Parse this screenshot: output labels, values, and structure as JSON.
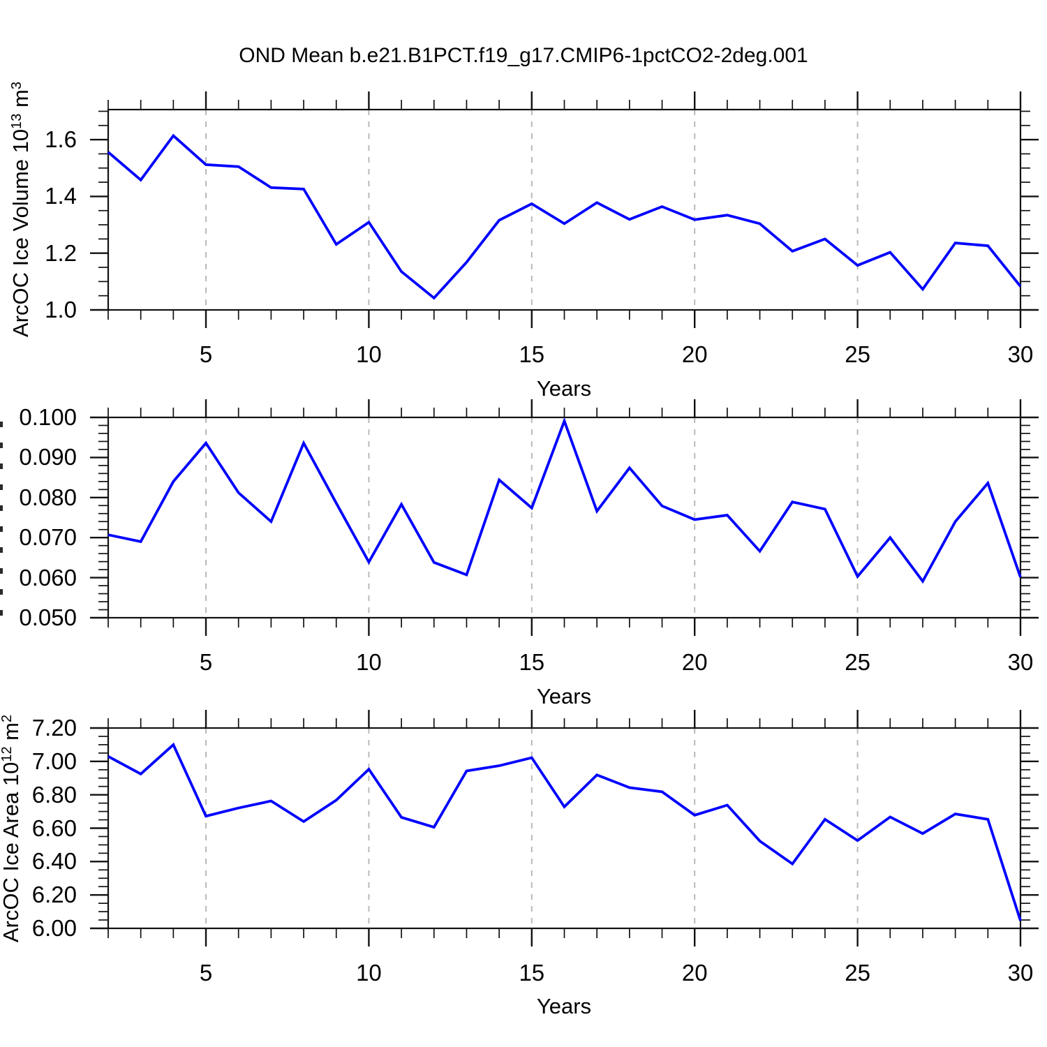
{
  "title": "OND Mean b.e21.B1PCT.f19_g17.CMIP6-1pctCO2-2deg.001",
  "colors": {
    "line": "#0000ff",
    "frame": "#111111",
    "tick": "#111111",
    "grid": "#b9b9b9",
    "text": "#000000"
  },
  "chart_data": {
    "type": "line",
    "x_years": [
      2,
      3,
      4,
      5,
      6,
      7,
      8,
      9,
      10,
      11,
      12,
      13,
      14,
      15,
      16,
      17,
      18,
      19,
      20,
      21,
      22,
      23,
      24,
      25,
      26,
      27,
      28,
      29,
      30
    ],
    "x_axis": {
      "label": "Years",
      "min": 2,
      "max": 30,
      "major_ticks": [
        {
          "v": 5,
          "label": "5"
        },
        {
          "v": 10,
          "label": "10"
        },
        {
          "v": 15,
          "label": "15"
        },
        {
          "v": 20,
          "label": "20"
        },
        {
          "v": 25,
          "label": "25"
        },
        {
          "v": 30,
          "label": "30"
        }
      ],
      "minor_step": 1,
      "gridlines": [
        5,
        10,
        15,
        20,
        25
      ],
      "grid_style": "dashed"
    },
    "panels": [
      {
        "name": "arctic-ice-volume",
        "ylabel": {
          "pre": "ArcOC Ice Volume 10",
          "sup": "13",
          "mid": " m",
          "sup2": "3"
        },
        "ymin": 1.0,
        "ymax": 1.706,
        "yminor_step": 0.05,
        "yticks": [
          {
            "v": 1.6,
            "label": "1.6"
          },
          {
            "v": 1.4,
            "label": "1.4"
          },
          {
            "v": 1.2,
            "label": "1.2"
          },
          {
            "v": 1.0,
            "label": "1.0"
          }
        ],
        "values": [
          1.556,
          1.458,
          1.614,
          1.512,
          1.505,
          1.431,
          1.426,
          1.231,
          1.309,
          1.135,
          1.042,
          1.168,
          1.316,
          1.374,
          1.304,
          1.378,
          1.319,
          1.364,
          1.318,
          1.334,
          1.304,
          1.207,
          1.25,
          1.157,
          1.203,
          1.073,
          1.236,
          1.226,
          1.083
        ]
      },
      {
        "name": "arctic-ice-middle-variable",
        "ylabel_clipped": true,
        "ymin": 0.05,
        "ymax": 0.1,
        "yminor_step": 0.002,
        "yticks": [
          {
            "v": 0.1,
            "label": "0.100"
          },
          {
            "v": 0.09,
            "label": "0.090"
          },
          {
            "v": 0.08,
            "label": "0.080"
          },
          {
            "v": 0.07,
            "label": "0.070"
          },
          {
            "v": 0.06,
            "label": "0.060"
          },
          {
            "v": 0.05,
            "label": "0.050"
          }
        ],
        "values": [
          0.0707,
          0.069,
          0.084,
          0.0936,
          0.0812,
          0.074,
          0.0936,
          0.0786,
          0.0639,
          0.0783,
          0.0638,
          0.0607,
          0.0844,
          0.0774,
          0.0991,
          0.0766,
          0.0874,
          0.0779,
          0.0745,
          0.0756,
          0.0666,
          0.0789,
          0.0771,
          0.0603,
          0.07,
          0.0591,
          0.074,
          0.0836,
          0.0601
        ]
      },
      {
        "name": "arctic-ice-area",
        "ylabel": {
          "pre": "ArcOC Ice Area 10",
          "sup": "12",
          "mid": " m",
          "sup2": "2"
        },
        "ymin": 6.0,
        "ymax": 7.2,
        "yminor_step": 0.05,
        "yticks": [
          {
            "v": 7.2,
            "label": "7.20"
          },
          {
            "v": 7.0,
            "label": "7.00"
          },
          {
            "v": 6.8,
            "label": "6.80"
          },
          {
            "v": 6.6,
            "label": "6.60"
          },
          {
            "v": 6.4,
            "label": "6.40"
          },
          {
            "v": 6.2,
            "label": "6.20"
          },
          {
            "v": 6.0,
            "label": "6.00"
          }
        ],
        "values": [
          7.03,
          6.925,
          7.1,
          6.672,
          6.721,
          6.763,
          6.64,
          6.768,
          6.953,
          6.665,
          6.606,
          6.943,
          6.974,
          7.022,
          6.728,
          6.919,
          6.843,
          6.818,
          6.678,
          6.738,
          6.523,
          6.386,
          6.653,
          6.526,
          6.667,
          6.568,
          6.685,
          6.653,
          6.046
        ]
      }
    ]
  }
}
